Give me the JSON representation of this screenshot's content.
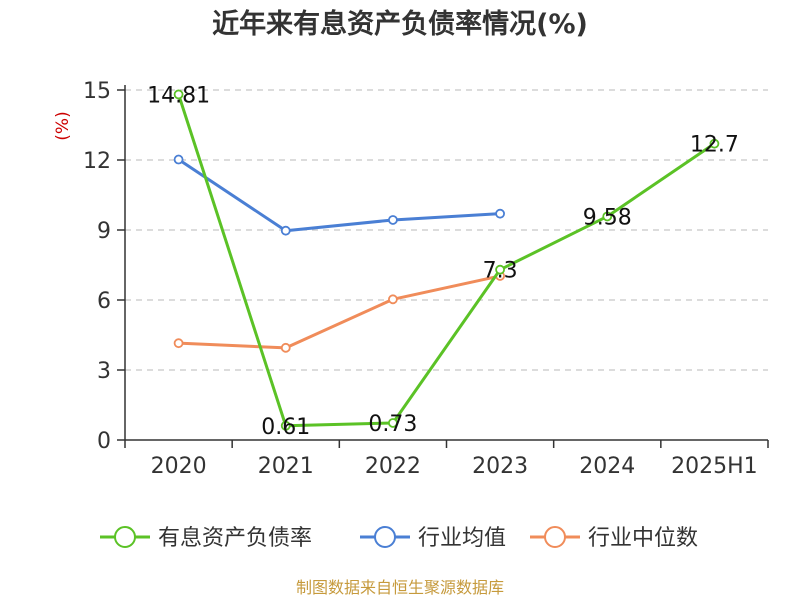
{
  "chart_data": {
    "type": "line",
    "title": "近年来有息资产负债率情况(%)",
    "ylabel": "(%)",
    "categories": [
      "2020",
      "2021",
      "2022",
      "2023",
      "2024",
      "2025H1"
    ],
    "yticks": [
      0,
      3,
      6,
      9,
      12,
      15
    ],
    "ylim": [
      0,
      15
    ],
    "grid": true,
    "legend_position": "bottom",
    "series": [
      {
        "name": "有息资产负债率",
        "color": "#5bc226",
        "values": [
          14.81,
          0.61,
          0.73,
          7.3,
          9.58,
          12.7
        ],
        "labels": [
          "14.81",
          "0.61",
          "0.73",
          "7.3",
          "9.58",
          "12.7"
        ]
      },
      {
        "name": "行业均值",
        "color": "#4a7fd4",
        "values": [
          12.02,
          8.97,
          9.43,
          9.7,
          null,
          null
        ]
      },
      {
        "name": "行业中位数",
        "color": "#f08c5a",
        "values": [
          4.15,
          3.95,
          6.03,
          7.03,
          null,
          null
        ]
      }
    ]
  },
  "source": "制图数据来自恒生聚源数据库"
}
